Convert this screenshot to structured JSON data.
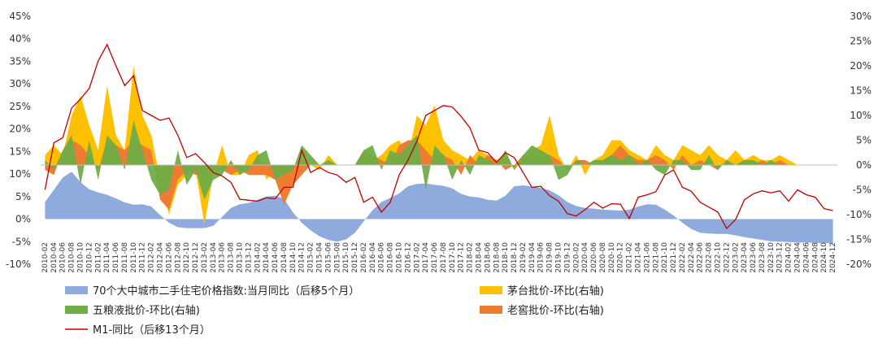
{
  "chart_data": {
    "type": "area",
    "title": "",
    "left_axis": {
      "ylim": [
        -10,
        45
      ],
      "ticks": [
        "-10%",
        "-5%",
        "0%",
        "5%",
        "10%",
        "15%",
        "20%",
        "25%",
        "30%",
        "35%",
        "40%",
        "45%"
      ]
    },
    "right_axis": {
      "ylim": [
        -20,
        30
      ],
      "ticks": [
        "-20%",
        "-15%",
        "-10%",
        "-5%",
        "0%",
        "5%",
        "10%",
        "15%",
        "20%",
        "25%",
        "30%"
      ]
    },
    "x_tick_labels": [
      "2010-02",
      "2010-04",
      "2010-06",
      "2010-08",
      "2010-10",
      "2010-12",
      "2011-02",
      "2011-04",
      "2011-06",
      "2011-08",
      "2011-10",
      "2011-12",
      "2012-02",
      "2012-04",
      "2012-06",
      "2012-08",
      "2012-10",
      "2012-12",
      "2013-02",
      "2013-04",
      "2013-06",
      "2013-08",
      "2013-10",
      "2013-12",
      "2014-02",
      "2014-04",
      "2014-06",
      "2014-08",
      "2014-10",
      "2014-12",
      "2015-02",
      "2015-04",
      "2015-06",
      "2015-08",
      "2015-10",
      "2015-12",
      "2016-02",
      "2016-04",
      "2016-06",
      "2016-08",
      "2016-10",
      "2016-12",
      "2017-02",
      "2017-04",
      "2017-06",
      "2017-08",
      "2017-10",
      "2017-12",
      "2018-02",
      "2018-04",
      "2018-06",
      "2018-08",
      "2018-10",
      "2018-12",
      "2019-02",
      "2019-04",
      "2019-06",
      "2019-08",
      "2019-10",
      "2019-12",
      "2020-02",
      "2020-04",
      "2020-06",
      "2020-08",
      "2020-10",
      "2020-12",
      "2021-02",
      "2021-04",
      "2021-06",
      "2021-08",
      "2021-10",
      "2021-12",
      "2022-02",
      "2022-04",
      "2022-06",
      "2022-08",
      "2022-10",
      "2022-12",
      "2023-02",
      "2023-04",
      "2023-06",
      "2023-08",
      "2023-10",
      "2023-12",
      "2024-02",
      "2024-04",
      "2024-06",
      "2024-08",
      "2024-10",
      "2024-12"
    ],
    "series_housing": {
      "name": "70个大中城市二手住宅价格指数:当月同比（后移5个月）",
      "color": "#8FAADC",
      "axis": "left",
      "values": [
        3.8,
        6.5,
        9.2,
        10.5,
        8.2,
        6.6,
        5.9,
        5.4,
        4.6,
        3.7,
        3.2,
        3.3,
        2.8,
        0.9,
        -0.8,
        -1.8,
        -2.0,
        -2.0,
        -2.0,
        -1.5,
        0.5,
        2.5,
        3.3,
        3.6,
        4.3,
        5.0,
        5.2,
        4.5,
        1.5,
        -0.8,
        -2.5,
        -3.8,
        -4.6,
        -5.0,
        -4.5,
        -3.0,
        -0.5,
        2.0,
        3.8,
        4.7,
        5.7,
        7.3,
        7.8,
        7.9,
        7.6,
        7.4,
        6.8,
        5.6,
        5.0,
        4.8,
        4.3,
        4.1,
        5.2,
        7.3,
        7.5,
        7.2,
        6.9,
        6.4,
        5.3,
        3.8,
        2.9,
        2.5,
        2.3,
        2.1,
        2.0,
        1.9,
        2.1,
        2.8,
        3.3,
        3.2,
        2.1,
        0.8,
        -0.8,
        -2.2,
        -3.0,
        -3.2,
        -3.3,
        -3.3,
        -3.6,
        -4.0,
        -4.3,
        -4.6,
        -4.9,
        -5.0,
        -5.1,
        -5.2,
        -5.2,
        -5.3,
        -5.3,
        -5.4
      ]
    },
    "series_moutai": {
      "name": "茅台批价-环比(右轴)",
      "color": "#FFC000",
      "axis": "right",
      "values": [
        2,
        4,
        2,
        10,
        14,
        8,
        3,
        16,
        6,
        3,
        20,
        10,
        6,
        -3,
        -10,
        -4,
        -2,
        -1,
        -12,
        -2,
        4,
        -2,
        -2,
        2,
        3,
        -3,
        -1,
        -3,
        -2,
        1,
        0,
        -1,
        2,
        0,
        0,
        0,
        2,
        1,
        2,
        4,
        5,
        2,
        10,
        8,
        12,
        5,
        3,
        2,
        1,
        3,
        2,
        1,
        2,
        -1,
        1,
        3,
        4,
        10,
        2,
        -1,
        2,
        -2,
        1,
        2,
        5,
        5,
        3,
        2,
        1,
        4,
        2,
        1,
        4,
        3,
        2,
        4,
        2,
        1,
        3,
        1,
        2,
        1,
        1,
        2,
        1,
        0,
        0,
        0,
        0,
        0
      ]
    },
    "series_wuliangye": {
      "name": "五粮液批价-环比(右轴)",
      "color": "#70AD47",
      "axis": "right",
      "values": [
        1,
        -1,
        3,
        6,
        -4,
        5,
        -3,
        6,
        4,
        -1,
        9,
        3,
        -3,
        -6,
        -5,
        3,
        -4,
        -1,
        -7,
        -3,
        -2,
        1,
        -2,
        -1,
        2,
        3,
        -3,
        -2,
        -1,
        4,
        2,
        0,
        1,
        0,
        0,
        0,
        3,
        4,
        -1,
        3,
        2,
        4,
        6,
        -5,
        4,
        2,
        -3,
        1,
        -2,
        2,
        1,
        0,
        3,
        -1,
        2,
        4,
        3,
        2,
        -3,
        -2,
        1,
        0,
        1,
        1,
        2,
        1,
        2,
        0,
        1,
        -1,
        -2,
        1,
        1,
        -1,
        -1,
        2,
        -1,
        1,
        0,
        1,
        1,
        0,
        1,
        0,
        0,
        0,
        0,
        0,
        0,
        0
      ]
    },
    "series_laojiao": {
      "name": "老窖批价-环比(右轴)",
      "color": "#ED7D31",
      "axis": "right",
      "values": [
        -1,
        -2,
        3,
        5,
        4,
        2,
        -1,
        5,
        4,
        3,
        5,
        4,
        3,
        -7,
        -9,
        -3,
        -1,
        -2,
        -2,
        -1,
        -1,
        -2,
        -1,
        -2,
        -2,
        -2,
        -3,
        -8,
        -4,
        -2,
        0,
        0,
        0,
        0,
        0,
        0,
        3,
        2,
        1,
        0,
        4,
        5,
        5,
        3,
        1,
        2,
        1,
        -2,
        2,
        0,
        2,
        1,
        -1,
        0,
        2,
        2,
        1,
        2,
        1,
        -1,
        1,
        1,
        0,
        1,
        2,
        4,
        2,
        1,
        1,
        2,
        1,
        -1,
        2,
        0,
        1,
        0,
        -1,
        1,
        0,
        1,
        0,
        1,
        0,
        1,
        0,
        0,
        0,
        0,
        0,
        0
      ]
    },
    "series_m1": {
      "name": "M1-同比（后移13个月）",
      "color": "#C00000",
      "axis": "right",
      "values": [
        -5,
        4.5,
        5.5,
        11.5,
        13.3,
        15.5,
        21,
        24.3,
        20,
        16,
        18,
        11,
        10,
        9,
        9.5,
        6,
        1.5,
        2.3,
        0.5,
        -1.5,
        -2.2,
        -3.5,
        -6.9,
        -7.1,
        -7.3,
        -6.6,
        -6.8,
        -4.5,
        -4.5,
        3,
        -1.5,
        -0.5,
        -1.5,
        -2,
        -3.5,
        -2.5,
        -7.5,
        -6.5,
        -9.5,
        -7.5,
        -2,
        1,
        4.8,
        10,
        11,
        12,
        11.7,
        9.8,
        7.5,
        3,
        2.5,
        0.5,
        2.5,
        1.5,
        -1.5,
        -4.5,
        -4.3,
        -6.2,
        -7.3,
        -9.8,
        -10.3,
        -9,
        -7.5,
        -8.7,
        -7.8,
        -7.9,
        -10.8,
        -6.5,
        -6,
        -5.4,
        -2,
        -1,
        -4.5,
        -5.3,
        -7.5,
        -8.5,
        -9.5,
        -12.8,
        -11,
        -7,
        -5.8,
        -5.2,
        -5.6,
        -5.2,
        -7.3,
        -5,
        -6,
        -6.5,
        -8.8,
        -9.2
      ]
    },
    "legend": [
      {
        "label": "70个大中城市二手住宅价格指数:当月同比（后移5个月）",
        "color": "#8FAADC",
        "kind": "area"
      },
      {
        "label": "茅台批价-环比(右轴)",
        "color": "#FFC000",
        "kind": "area"
      },
      {
        "label": "五粮液批价-环比(右轴)",
        "color": "#70AD47",
        "kind": "area"
      },
      {
        "label": "老窖批价-环比(右轴)",
        "color": "#ED7D31",
        "kind": "area"
      },
      {
        "label": "M1-同比（后移13个月）",
        "color": "#C00000",
        "kind": "line"
      }
    ],
    "legend_placement": "bottom",
    "grid": false
  }
}
